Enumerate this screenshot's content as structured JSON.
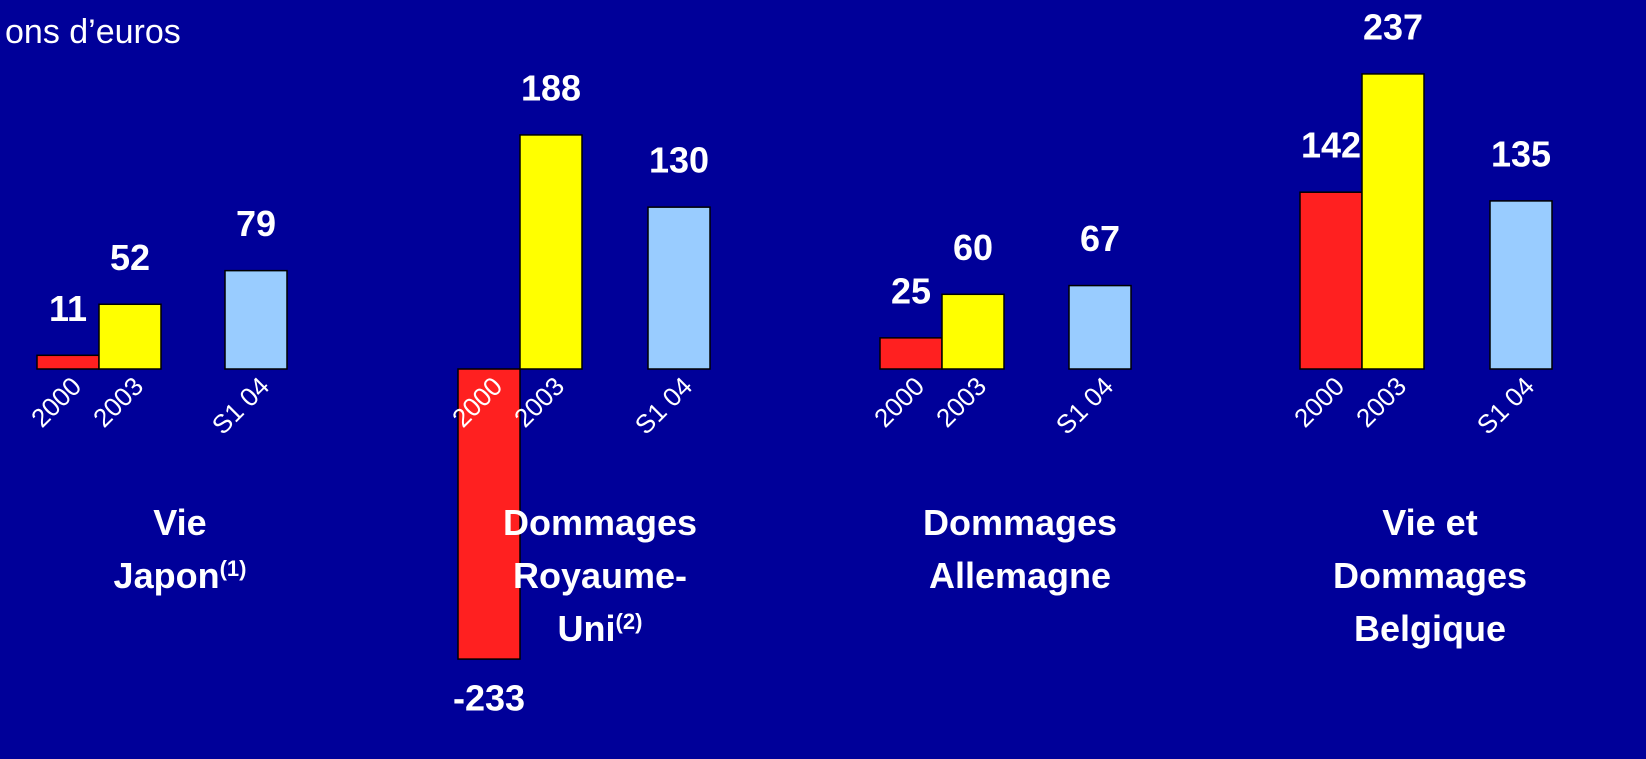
{
  "subtitle": "ons d’euros",
  "chart_data": [
    {
      "type": "bar",
      "title": [
        "Vie",
        "Japon"
      ],
      "title_note": "(1)",
      "categories": [
        "2000",
        "2003",
        "S1 04"
      ],
      "values": [
        11,
        52,
        79
      ],
      "colors": [
        "#ff2020",
        "#ffff00",
        "#99ccff"
      ]
    },
    {
      "type": "bar",
      "title": [
        "Dommages",
        "Royaume-",
        "Uni"
      ],
      "title_note": "(2)",
      "categories": [
        "2000",
        "2003",
        "S1 04"
      ],
      "values": [
        -233,
        188,
        130
      ],
      "colors": [
        "#ff2020",
        "#ffff00",
        "#99ccff"
      ]
    },
    {
      "type": "bar",
      "title": [
        "Dommages",
        "Allemagne"
      ],
      "categories": [
        "2000",
        "2003",
        "S1 04"
      ],
      "values": [
        25,
        60,
        67
      ],
      "colors": [
        "#ff2020",
        "#ffff00",
        "#99ccff"
      ]
    },
    {
      "type": "bar",
      "title": [
        "Vie et",
        "Dommages",
        "Belgique"
      ],
      "categories": [
        "2000",
        "2003",
        "S1 04"
      ],
      "values": [
        142,
        237,
        135
      ],
      "colors": [
        "#ff2020",
        "#ffff00",
        "#99ccff"
      ]
    }
  ]
}
